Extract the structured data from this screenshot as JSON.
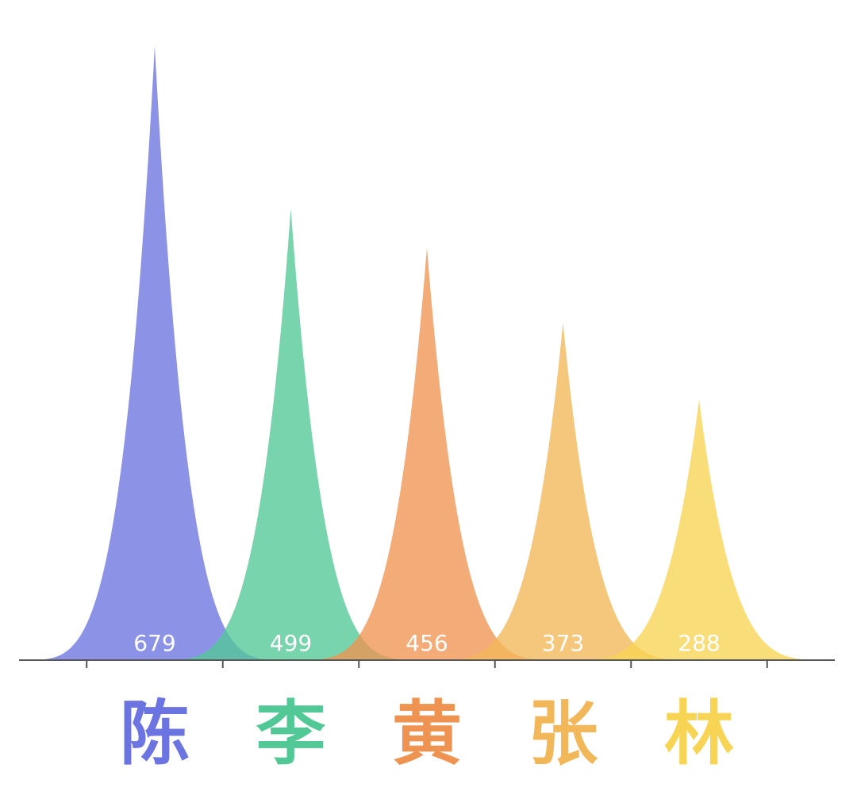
{
  "chart_data": {
    "type": "area",
    "categories": [
      "陈",
      "李",
      "黄",
      "张",
      "林"
    ],
    "values": [
      679,
      499,
      456,
      373,
      288
    ],
    "value_labels": [
      "679",
      "499",
      "456",
      "373",
      "288"
    ],
    "colors": [
      "#6b74e0",
      "#52c896",
      "#ef9352",
      "#f2b758",
      "#f7d453"
    ],
    "ylim": [
      0,
      700
    ],
    "grid": false,
    "legend": "none"
  }
}
